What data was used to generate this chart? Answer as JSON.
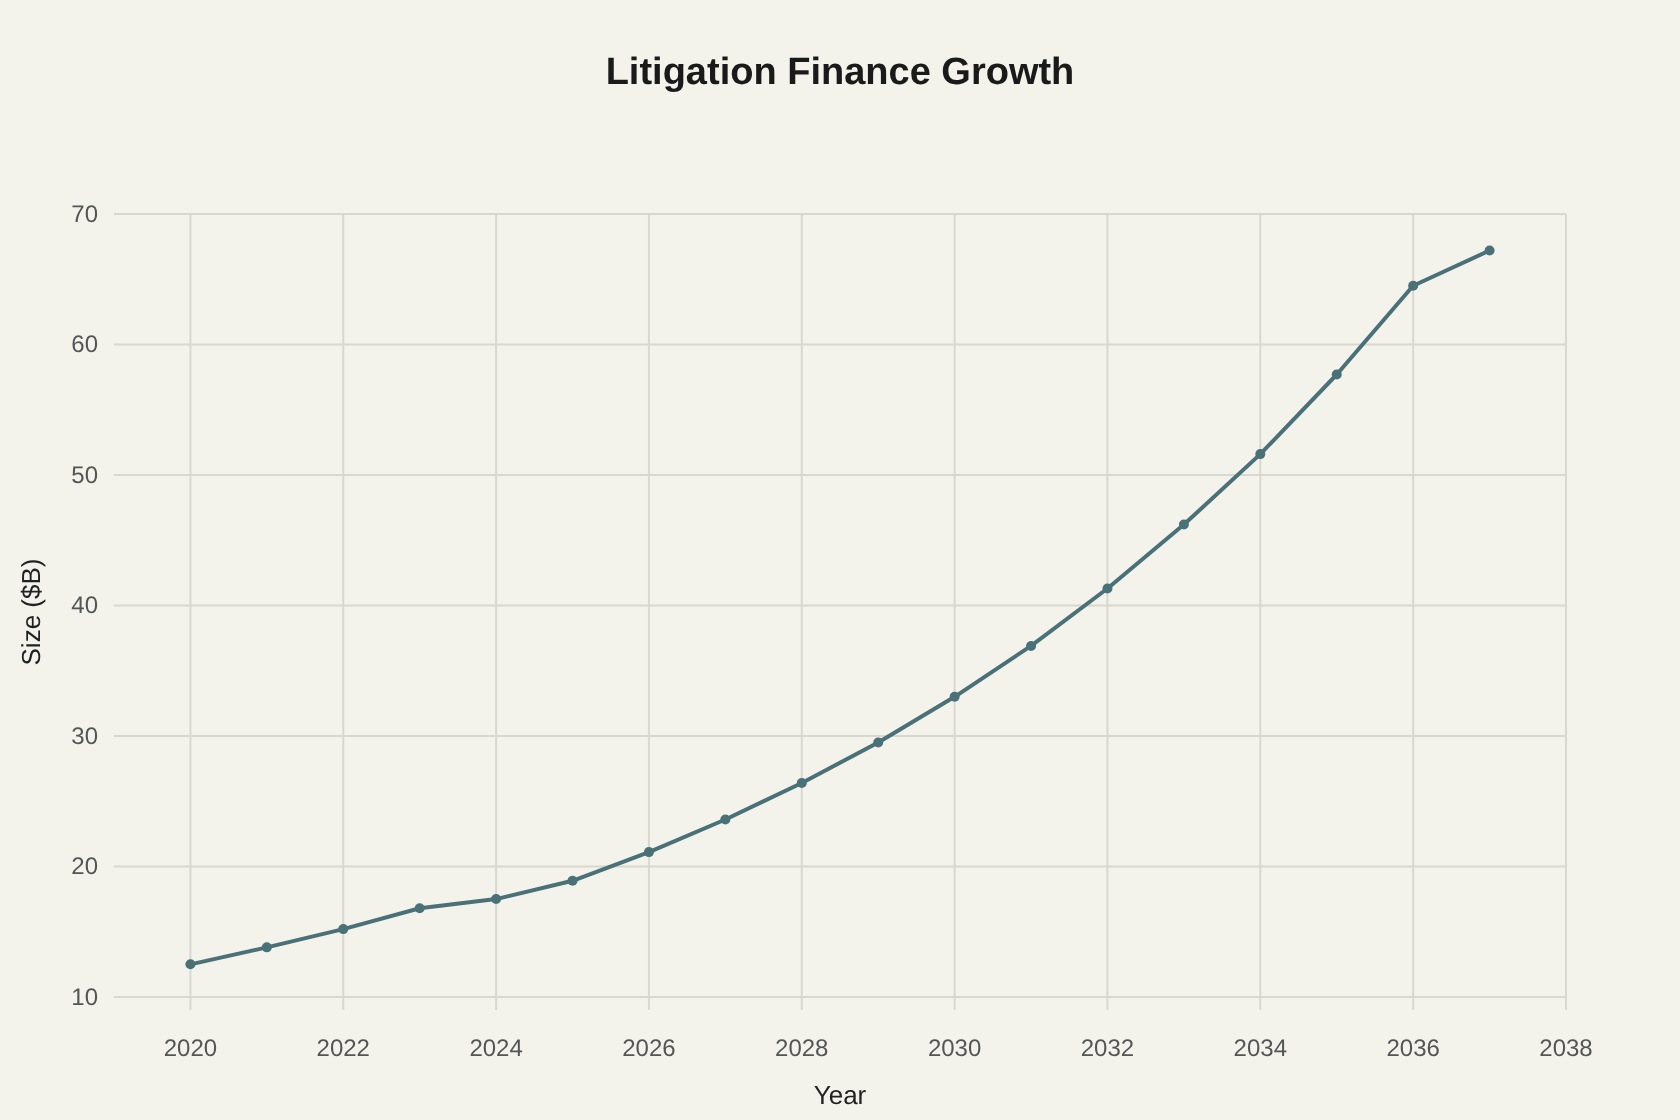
{
  "chart_data": {
    "type": "line",
    "title": "Litigation Finance Growth",
    "xlabel": "Year",
    "ylabel": "Size ($B)",
    "x": [
      2020,
      2021,
      2022,
      2023,
      2024,
      2025,
      2026,
      2027,
      2028,
      2029,
      2030,
      2031,
      2032,
      2033,
      2034,
      2035,
      2036,
      2037
    ],
    "series": [
      {
        "color": "#4a7178",
        "values": [
          12.5,
          13.8,
          15.2,
          16.8,
          17.5,
          18.9,
          21.1,
          23.6,
          26.4,
          29.5,
          33.0,
          36.9,
          41.3,
          46.2,
          51.6,
          57.7,
          64.5,
          67.2
        ]
      }
    ],
    "xlim": [
      2019,
      2038
    ],
    "xticks": [
      2020,
      2022,
      2024,
      2026,
      2028,
      2030,
      2032,
      2034,
      2036,
      2038
    ],
    "ylim": [
      9,
      70
    ],
    "yticks": [
      10,
      20,
      30,
      40,
      50,
      60,
      70
    ],
    "grid": true,
    "marker": "circle",
    "line_style": "solid"
  }
}
